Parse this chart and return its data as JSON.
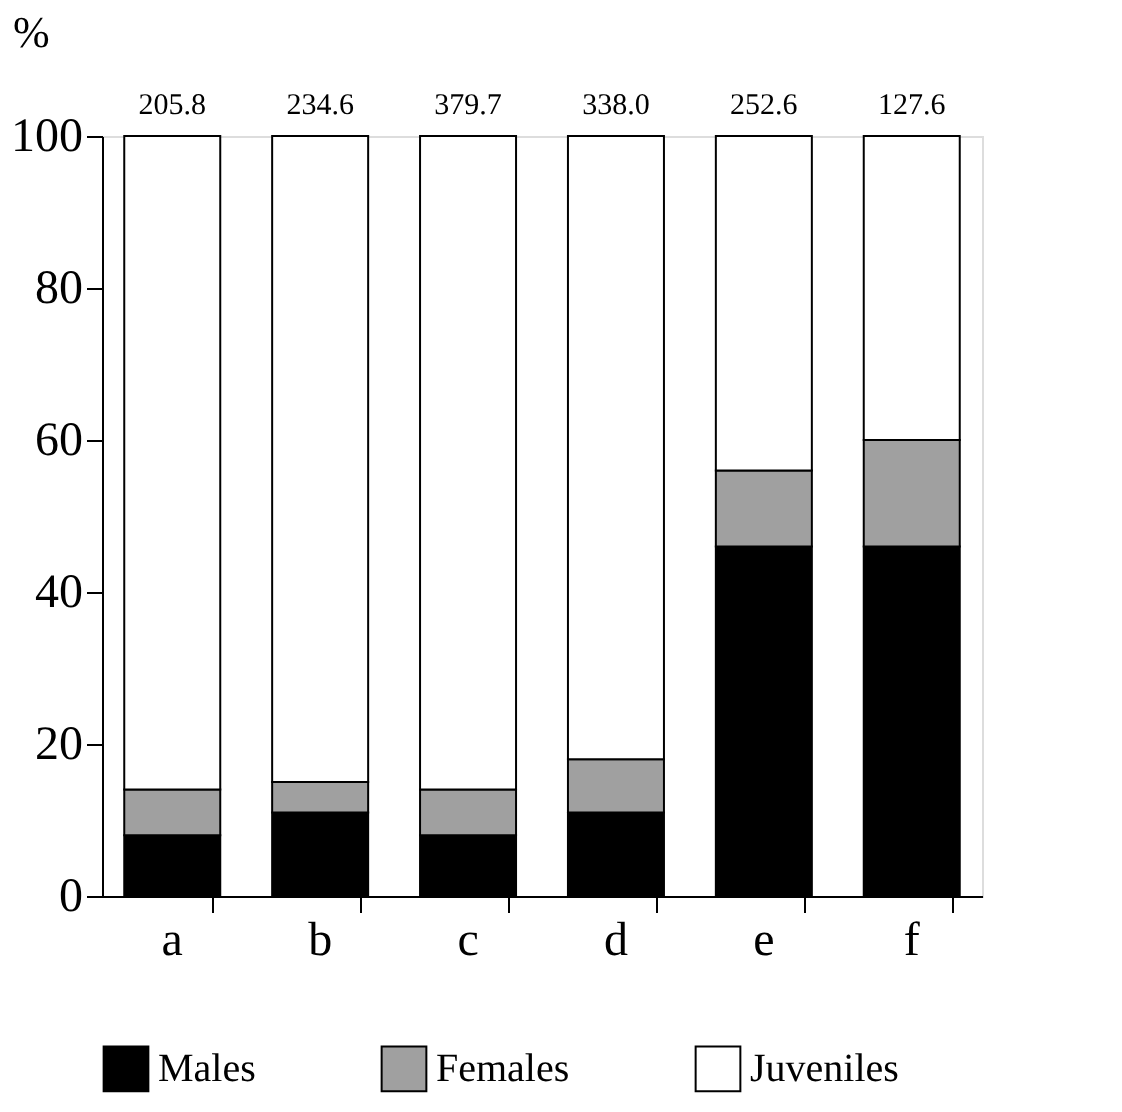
{
  "chart_data": {
    "type": "bar",
    "stacked": true,
    "ylabel": "%",
    "categories": [
      "a",
      "b",
      "c",
      "d",
      "e",
      "f"
    ],
    "series": [
      {
        "name": "Males",
        "color": "#000000",
        "values": [
          8,
          11,
          8,
          11,
          46,
          46
        ]
      },
      {
        "name": "Females",
        "color": "#a0a0a0",
        "values": [
          6,
          4,
          6,
          7,
          10,
          14
        ]
      },
      {
        "name": "Juveniles",
        "color": "#ffffff",
        "values": [
          86,
          85,
          86,
          82,
          44,
          40
        ]
      }
    ],
    "annotations": [
      {
        "text": "205.8",
        "x": "a",
        "y": 100
      },
      {
        "text": "234.6",
        "x": "b",
        "y": 100
      },
      {
        "text": "379.7",
        "x": "c",
        "y": 100
      },
      {
        "text": "338.0",
        "x": "d",
        "y": 100
      },
      {
        "text": "252.6",
        "x": "e",
        "y": 100
      },
      {
        "text": "127.6",
        "x": "f",
        "y": 100
      }
    ],
    "ylim": [
      0,
      100
    ],
    "yticks": [
      0,
      20,
      40,
      60,
      80,
      100
    ],
    "grid": false,
    "legend": "bottom"
  }
}
